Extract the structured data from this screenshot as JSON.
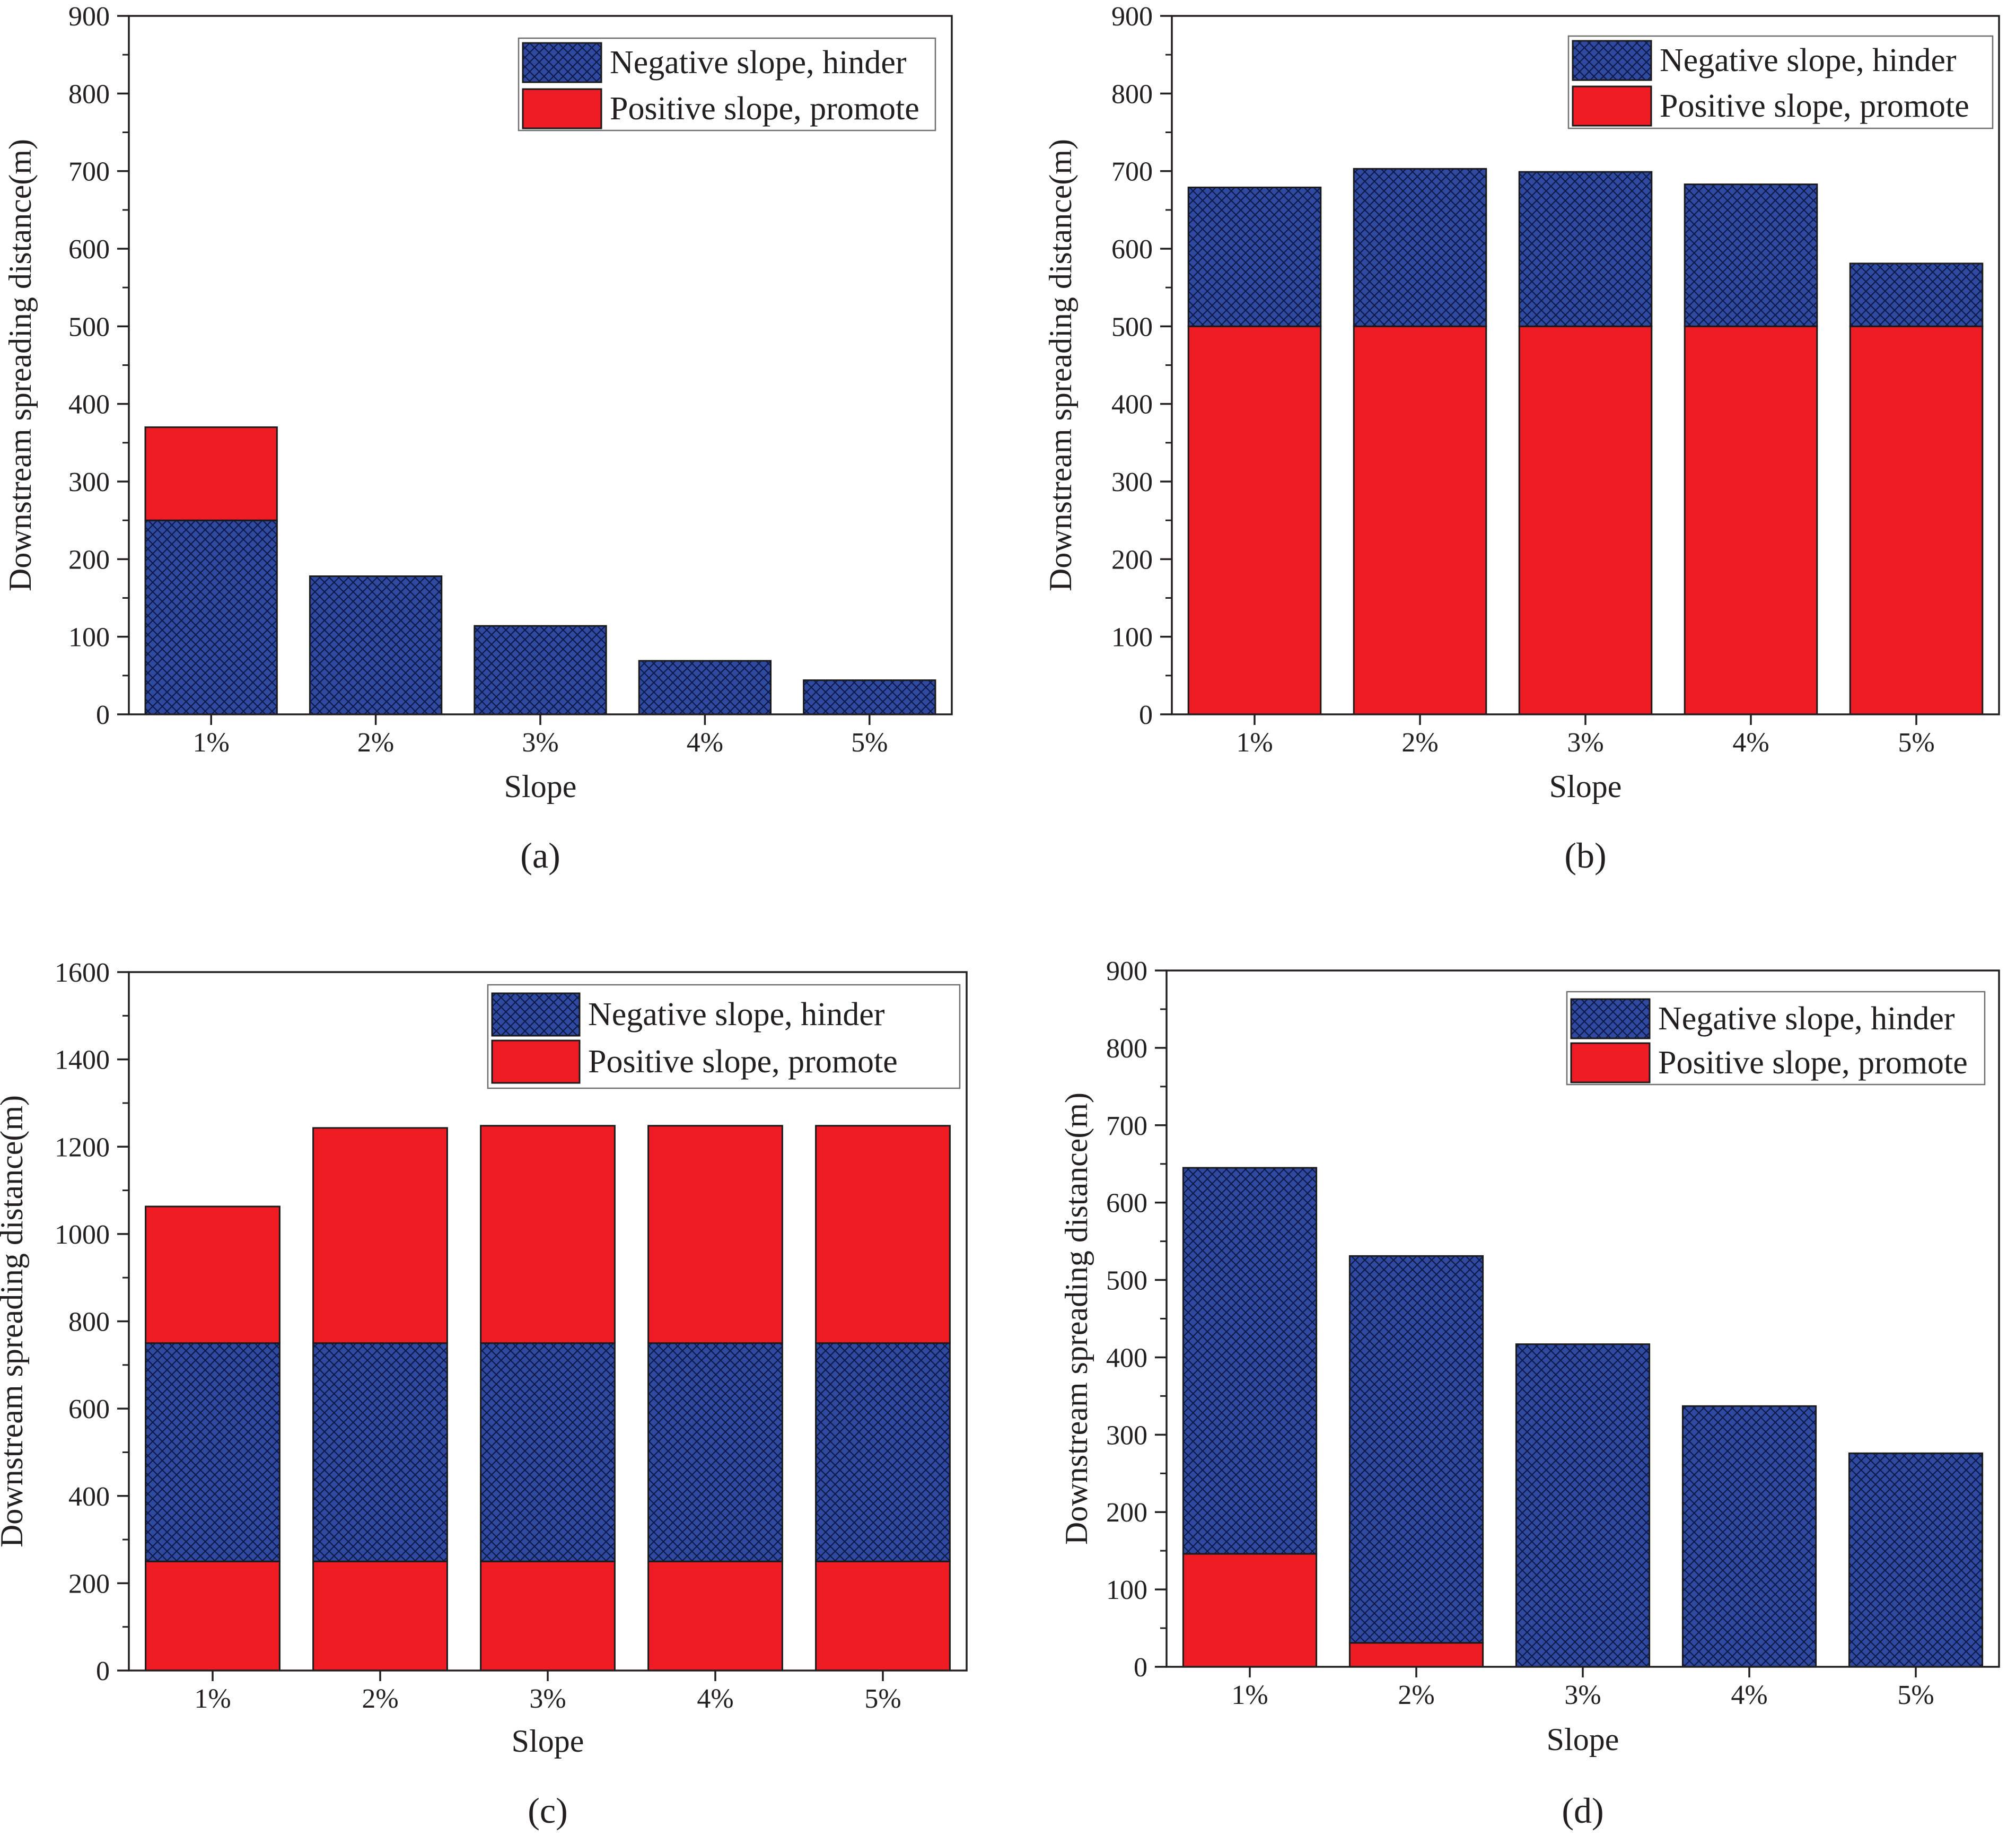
{
  "colors": {
    "negative": "#2f4aa0",
    "positive": "#ee1c25",
    "axis": "#231f20"
  },
  "legend": {
    "negative_label": "Negative slope, hinder",
    "positive_label": "Positive slope, promote"
  },
  "chart_data": [
    {
      "type": "bar",
      "stacked": true,
      "panel_label": "(a)",
      "categories": [
        "1%",
        "2%",
        "3%",
        "4%",
        "5%"
      ],
      "xlabel": "Slope",
      "ylabel": "Downstream spreading distance(m)",
      "ylim": [
        0,
        900
      ],
      "yticks": [
        0,
        100,
        200,
        300,
        400,
        500,
        600,
        700,
        800,
        900
      ],
      "legend_position": "top-right",
      "series": [
        {
          "name": "Negative slope, hinder",
          "key": "negative",
          "values": [
            250,
            178,
            114,
            69,
            44
          ]
        },
        {
          "name": "Positive slope, promote",
          "key": "positive",
          "values": [
            120,
            0,
            0,
            0,
            0
          ]
        }
      ],
      "stack_order": [
        "negative",
        "positive"
      ]
    },
    {
      "type": "bar",
      "stacked": true,
      "panel_label": "(b)",
      "categories": [
        "1%",
        "2%",
        "3%",
        "4%",
        "5%"
      ],
      "xlabel": "Slope",
      "ylabel": "Downstream spreading distance(m)",
      "ylim": [
        0,
        900
      ],
      "yticks": [
        0,
        100,
        200,
        300,
        400,
        500,
        600,
        700,
        800,
        900
      ],
      "legend_position": "top-right",
      "series": [
        {
          "name": "Positive slope, promote",
          "key": "positive",
          "values": [
            500,
            500,
            500,
            500,
            500
          ]
        },
        {
          "name": "Negative slope, hinder",
          "key": "negative",
          "values": [
            179,
            203,
            199,
            183,
            81
          ]
        }
      ],
      "stack_order": [
        "positive",
        "negative"
      ]
    },
    {
      "type": "bar",
      "stacked": true,
      "panel_label": "(c)",
      "categories": [
        "1%",
        "2%",
        "3%",
        "4%",
        "5%"
      ],
      "xlabel": "Slope",
      "ylabel": "Downstream spreading distance(m)",
      "ylim": [
        0,
        1600
      ],
      "yticks": [
        0,
        200,
        400,
        600,
        800,
        1000,
        1200,
        1400,
        1600
      ],
      "legend_position": "top-right",
      "series": [
        {
          "name": "Positive slope, promote (lower)",
          "key": "positive",
          "values": [
            250,
            250,
            250,
            250,
            250
          ]
        },
        {
          "name": "Negative slope, hinder",
          "key": "negative",
          "values": [
            500,
            500,
            500,
            500,
            500
          ]
        },
        {
          "name": "Positive slope, promote (upper)",
          "key": "positive",
          "values": [
            313,
            493,
            498,
            498,
            498
          ]
        }
      ],
      "stack_order": [
        "positive",
        "negative",
        "positive"
      ]
    },
    {
      "type": "bar",
      "stacked": true,
      "panel_label": "(d)",
      "categories": [
        "1%",
        "2%",
        "3%",
        "4%",
        "5%"
      ],
      "xlabel": "Slope",
      "ylabel": "Downstream spreading distance(m)",
      "ylim": [
        0,
        900
      ],
      "yticks": [
        0,
        100,
        200,
        300,
        400,
        500,
        600,
        700,
        800,
        900
      ],
      "legend_position": "top-right",
      "series": [
        {
          "name": "Positive slope, promote",
          "key": "positive",
          "values": [
            146,
            31,
            0,
            0,
            0
          ]
        },
        {
          "name": "Negative slope, hinder",
          "key": "negative",
          "values": [
            499,
            500,
            417,
            337,
            276
          ]
        }
      ],
      "stack_order": [
        "positive",
        "negative"
      ]
    }
  ]
}
